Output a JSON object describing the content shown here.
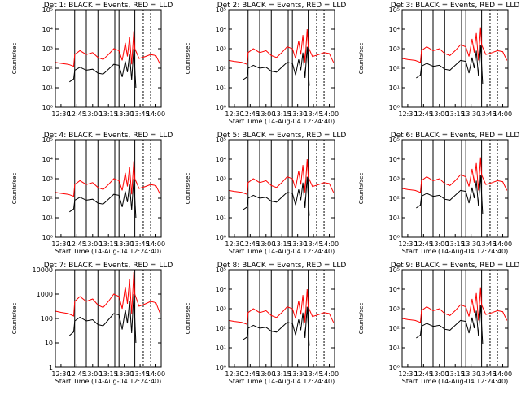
{
  "chart_data": [
    {
      "type": "line",
      "title": "Det 1: BLACK = Events, RED = LLD",
      "xlabel": "",
      "ylabel": "Counts/sec",
      "ylim_log10": [
        0,
        5
      ],
      "ytick_labels": [
        "10⁰",
        "10¹",
        "10²",
        "10³",
        "10⁴",
        "10⁵"
      ],
      "xtick_labels": [
        "12:30",
        "12:45",
        "13:00",
        "13:15",
        "13:30",
        "13:45",
        "14:00"
      ],
      "series": [
        {
          "name": "Events",
          "color": "#000000"
        },
        {
          "name": "LLD",
          "color": "#ff0000"
        }
      ]
    },
    {
      "type": "line",
      "title": "Det 2: BLACK = Events, RED = LLD",
      "xlabel": "Start Time (14-Aug-04 12:24:40)",
      "ylabel": "Counts/sec",
      "ylim_log10": [
        0,
        5
      ],
      "ytick_labels": [
        "10⁰",
        "10¹",
        "10²",
        "10³",
        "10⁴",
        "10⁵"
      ],
      "xtick_labels": [
        "12:30",
        "12:45",
        "13:00",
        "13:15",
        "13:30",
        "13:45",
        "14:00"
      ],
      "series": [
        {
          "name": "Events",
          "color": "#000000"
        },
        {
          "name": "LLD",
          "color": "#ff0000"
        }
      ]
    },
    {
      "type": "line",
      "title": "Det 3: BLACK = Events, RED = LLD",
      "xlabel": "",
      "ylabel": "Counts/sec",
      "ylim_log10": [
        0,
        5
      ],
      "ytick_labels": [
        "10⁰",
        "10¹",
        "10²",
        "10³",
        "10⁴",
        "10⁵"
      ],
      "xtick_labels": [
        "12:30",
        "12:45",
        "13:00",
        "13:15",
        "13:30",
        "13:45",
        "14:00"
      ],
      "series": [
        {
          "name": "Events",
          "color": "#000000"
        },
        {
          "name": "LLD",
          "color": "#ff0000"
        }
      ]
    },
    {
      "type": "line",
      "title": "Det 4: BLACK = Events, RED = LLD",
      "xlabel": "Start Time (14-Aug-04 12:24:40)",
      "ylabel": "Counts/sec",
      "ylim_log10": [
        0,
        5
      ],
      "ytick_labels": [
        "10⁰",
        "10¹",
        "10²",
        "10³",
        "10⁴",
        "10⁵"
      ],
      "xtick_labels": [
        "12:30",
        "12:45",
        "13:00",
        "13:15",
        "13:30",
        "13:45",
        "14:00"
      ],
      "series": [
        {
          "name": "Events",
          "color": "#000000"
        },
        {
          "name": "LLD",
          "color": "#ff0000"
        }
      ]
    },
    {
      "type": "line",
      "title": "Det 5: BLACK = Events, RED = LLD",
      "xlabel": "Start Time (14-Aug-04 12:24:40)",
      "ylabel": "Counts/sec",
      "ylim_log10": [
        0,
        5
      ],
      "ytick_labels": [
        "10⁰",
        "10¹",
        "10²",
        "10³",
        "10⁴",
        "10⁵"
      ],
      "xtick_labels": [
        "12:30",
        "12:45",
        "13:00",
        "13:15",
        "13:30",
        "13:45",
        "14:00"
      ],
      "series": [
        {
          "name": "Events",
          "color": "#000000"
        },
        {
          "name": "LLD",
          "color": "#ff0000"
        }
      ]
    },
    {
      "type": "line",
      "title": "Det 6: BLACK = Events, RED = LLD",
      "xlabel": "Start Time (14-Aug-04 12:24:40)",
      "ylabel": "Counts/sec",
      "ylim_log10": [
        0,
        5
      ],
      "ytick_labels": [
        "10⁰",
        "10¹",
        "10²",
        "10³",
        "10⁴",
        "10⁵"
      ],
      "xtick_labels": [
        "12:30",
        "12:45",
        "13:00",
        "13:15",
        "13:30",
        "13:45",
        "14:00"
      ],
      "series": [
        {
          "name": "Events",
          "color": "#000000"
        },
        {
          "name": "LLD",
          "color": "#ff0000"
        }
      ]
    },
    {
      "type": "line",
      "title": "Det 7: BLACK = Events, RED = LLD",
      "xlabel": "Start Time (14-Aug-04 12:24:40)",
      "ylabel": "Counts/sec",
      "ylim_log10": [
        0,
        4
      ],
      "ytick_labels": [
        "1",
        "10",
        "100",
        "1000",
        "10000"
      ],
      "xtick_labels": [
        "12:30",
        "12:45",
        "13:00",
        "13:15",
        "13:30",
        "13:45",
        "14:00"
      ],
      "series": [
        {
          "name": "Events",
          "color": "#000000"
        },
        {
          "name": "LLD",
          "color": "#ff0000"
        }
      ]
    },
    {
      "type": "line",
      "title": "Det 8: BLACK = Events, RED = LLD",
      "xlabel": "Start Time (14-Aug-04 12:24:40)",
      "ylabel": "Counts/sec",
      "ylim_log10": [
        0,
        5
      ],
      "ytick_labels": [
        "10⁰",
        "10¹",
        "10²",
        "10³",
        "10⁴",
        "10⁵"
      ],
      "xtick_labels": [
        "12:30",
        "12:45",
        "13:00",
        "13:15",
        "13:30",
        "13:45",
        "14:00"
      ],
      "series": [
        {
          "name": "Events",
          "color": "#000000"
        },
        {
          "name": "LLD",
          "color": "#ff0000"
        }
      ]
    },
    {
      "type": "line",
      "title": "Det 9: BLACK = Events, RED = LLD",
      "xlabel": "Start Time (14-Aug-04 12:24:40)",
      "ylabel": "Counts/sec",
      "ylim_log10": [
        0,
        5
      ],
      "ytick_labels": [
        "10⁰",
        "10¹",
        "10²",
        "10³",
        "10⁴",
        "10⁵"
      ],
      "xtick_labels": [
        "12:30",
        "12:45",
        "13:00",
        "13:15",
        "13:30",
        "13:45",
        "14:00"
      ],
      "series": [
        {
          "name": "Events",
          "color": "#000000"
        },
        {
          "name": "LLD",
          "color": "#ff0000"
        }
      ]
    }
  ],
  "x_range_minutes": [
    "12:24:40",
    "14:05"
  ],
  "vertical_markers": [
    "12:43",
    "12:54",
    "13:05",
    "13:21",
    "13:25",
    "13:40",
    "13:48",
    "13:55"
  ],
  "red_trace_points": [
    [
      "12:24:40",
      2.3
    ],
    [
      "12:30",
      2.25
    ],
    [
      "12:37",
      2.2
    ],
    [
      "12:42",
      2.1
    ],
    [
      "12:43",
      2.7
    ],
    [
      "12:48",
      2.9
    ],
    [
      "12:54",
      2.7
    ],
    [
      "13:00",
      2.8
    ],
    [
      "13:05",
      2.55
    ],
    [
      "13:10",
      2.45
    ],
    [
      "13:15",
      2.7
    ],
    [
      "13:20",
      3.0
    ],
    [
      "13:25",
      2.9
    ],
    [
      "13:28",
      2.4
    ],
    [
      "13:31",
      3.3
    ],
    [
      "13:33",
      2.6
    ],
    [
      "13:35",
      3.6
    ],
    [
      "13:37",
      2.2
    ],
    [
      "13:39",
      3.9
    ],
    [
      "13:40",
      3.0
    ],
    [
      "13:44",
      2.5
    ],
    [
      "13:50",
      2.6
    ],
    [
      "13:55",
      2.7
    ],
    [
      "14:00",
      2.65
    ],
    [
      "14:04",
      2.2
    ]
  ],
  "black_trace_points": [
    [
      "12:38",
      1.3
    ],
    [
      "12:42",
      1.45
    ],
    [
      "12:43",
      1.9
    ],
    [
      "12:48",
      2.05
    ],
    [
      "12:54",
      1.9
    ],
    [
      "13:00",
      1.95
    ],
    [
      "13:05",
      1.75
    ],
    [
      "13:10",
      1.7
    ],
    [
      "13:15",
      1.95
    ],
    [
      "13:20",
      2.2
    ],
    [
      "13:25",
      2.15
    ],
    [
      "13:28",
      1.55
    ],
    [
      "13:31",
      2.35
    ],
    [
      "13:33",
      1.8
    ],
    [
      "13:35",
      2.7
    ],
    [
      "13:37",
      1.4
    ],
    [
      "13:39",
      3.0
    ],
    [
      "13:41",
      1.0
    ]
  ]
}
